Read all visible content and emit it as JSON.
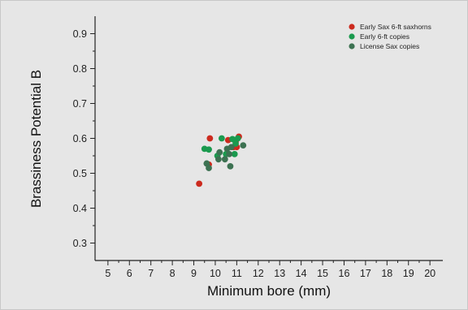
{
  "chart_data": {
    "type": "scatter",
    "title": "",
    "xlabel": "Minimum bore (mm)",
    "ylabel": "Brassiness Potential B",
    "xlim": [
      4.4,
      20.6
    ],
    "ylim": [
      0.25,
      0.95
    ],
    "xticks": [
      5,
      6,
      7,
      8,
      9,
      10,
      11,
      12,
      13,
      14,
      15,
      16,
      17,
      18,
      19,
      20
    ],
    "yticks": [
      0.3,
      0.4,
      0.5,
      0.6,
      0.7,
      0.8,
      0.9
    ],
    "ytick_labels": [
      "0.3",
      "0.4",
      "0.5",
      "0.6",
      "0.7",
      "0.8",
      "0.9"
    ],
    "grid": false,
    "legend_position": "top-right",
    "series": [
      {
        "name": "Early Sax 6-ft saxhorns",
        "color": "#cc2a1e",
        "points": [
          [
            9.25,
            0.47
          ],
          [
            9.75,
            0.6
          ],
          [
            9.7,
            0.525
          ],
          [
            10.6,
            0.595
          ],
          [
            10.85,
            0.575
          ],
          [
            11.0,
            0.575
          ],
          [
            10.95,
            0.59
          ],
          [
            11.1,
            0.605
          ]
        ]
      },
      {
        "name": "Early 6-ft copies",
        "color": "#1a9a4e",
        "points": [
          [
            9.5,
            0.57
          ],
          [
            9.7,
            0.568
          ],
          [
            10.1,
            0.55
          ],
          [
            10.3,
            0.6
          ],
          [
            10.5,
            0.555
          ],
          [
            10.8,
            0.598
          ],
          [
            10.95,
            0.585
          ],
          [
            10.9,
            0.555
          ],
          [
            11.05,
            0.6
          ]
        ]
      },
      {
        "name": "License Sax copies",
        "color": "#3d7252",
        "points": [
          [
            9.6,
            0.528
          ],
          [
            9.7,
            0.515
          ],
          [
            10.2,
            0.56
          ],
          [
            10.15,
            0.54
          ],
          [
            10.45,
            0.54
          ],
          [
            10.55,
            0.57
          ],
          [
            10.65,
            0.555
          ],
          [
            10.7,
            0.52
          ],
          [
            10.75,
            0.575
          ],
          [
            11.3,
            0.58
          ]
        ]
      }
    ]
  }
}
